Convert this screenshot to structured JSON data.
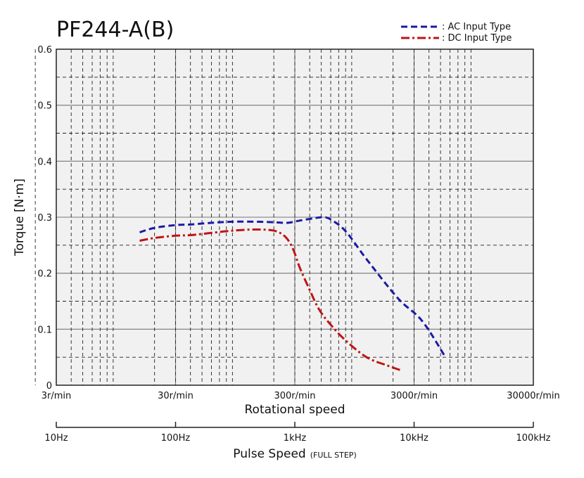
{
  "chart_data": {
    "type": "line",
    "title": "PF244-A(B)",
    "ylabel": "Torque [N·m]",
    "xlabel": "Rotational speed",
    "x2label": "Pulse Speed",
    "x2label_suffix": "(FULL STEP)",
    "x_scale": "log",
    "grid": true,
    "legend_position": "top-right",
    "ylim": [
      0,
      0.6
    ],
    "y_ticks": [
      "0",
      "0.1",
      "0.2",
      "0.3",
      "0.4",
      "0.5",
      "0.6"
    ],
    "x_ticks": [
      "3r/min",
      "30r/min",
      "300r/min",
      "3000r/min",
      "30000r/min"
    ],
    "x_tick_values": [
      3,
      30,
      300,
      3000,
      30000
    ],
    "x2_ticks": [
      "10Hz",
      "100Hz",
      "1kHz",
      "10kHz",
      "100kHz"
    ],
    "series": [
      {
        "name": ": AC Input Type",
        "color": "#1a1aa6",
        "dash": "dashed",
        "x": [
          15,
          20,
          30,
          40,
          60,
          90,
          140,
          200,
          260,
          330,
          430,
          520,
          600,
          800,
          1200,
          2200,
          3500,
          5500
        ],
        "y": [
          0.273,
          0.281,
          0.286,
          0.287,
          0.29,
          0.292,
          0.292,
          0.291,
          0.29,
          0.294,
          0.298,
          0.3,
          0.296,
          0.275,
          0.225,
          0.155,
          0.115,
          0.05
        ]
      },
      {
        "name": ": DC Input Type",
        "color": "#c01414",
        "dash": "dashdot",
        "x": [
          15,
          20,
          30,
          40,
          60,
          90,
          140,
          200,
          250,
          290,
          330,
          400,
          480,
          600,
          800,
          1200,
          1800,
          2300
        ],
        "y": [
          0.258,
          0.263,
          0.267,
          0.268,
          0.272,
          0.276,
          0.278,
          0.276,
          0.265,
          0.243,
          0.21,
          0.17,
          0.135,
          0.108,
          0.08,
          0.05,
          0.035,
          0.027
        ]
      }
    ]
  }
}
